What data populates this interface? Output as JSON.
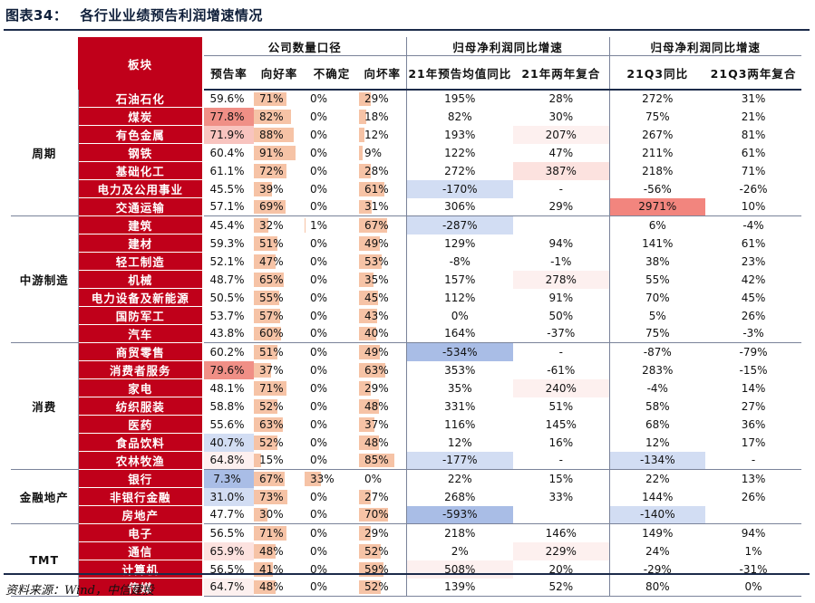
{
  "title": {
    "label": "图表34：",
    "text": "各行业业绩预告利润增速情况"
  },
  "headers": {
    "board": "板块",
    "company_count": "公司数量口径",
    "yoy_group_a": "归母净利润同比增速",
    "yoy_group_b": "归母净利润同比增速",
    "cols": [
      "预告率",
      "向好率",
      "不确定",
      "向坏率",
      "21年预告均值同比",
      "21年两年复合",
      "21Q3同比",
      "21Q3两年复合"
    ]
  },
  "categories": [
    {
      "name": "周期",
      "rows": 7
    },
    {
      "name": "中游制造",
      "rows": 7
    },
    {
      "name": "消费",
      "rows": 7
    },
    {
      "name": "金融地产",
      "rows": 3
    },
    {
      "name": "TMT",
      "rows": 4
    }
  ],
  "rows": [
    {
      "industry": "石油石化",
      "forecast_rate": "59.6%",
      "good": "71%",
      "good_pct": 71,
      "uncertain": "0%",
      "unc_pct": 0,
      "bad": "29%",
      "bad_pct": 29,
      "yoy21": "195%",
      "cagr21": "28%",
      "q3yoy": "272%",
      "q3cagr": "31%",
      "fr_style": "",
      "y_style": "",
      "c_style": "",
      "q_style": "",
      "qc_style": ""
    },
    {
      "industry": "煤炭",
      "forecast_rate": "77.8%",
      "good": "82%",
      "good_pct": 82,
      "uncertain": "0%",
      "unc_pct": 0,
      "bad": "18%",
      "bad_pct": 18,
      "yoy21": "82%",
      "cagr21": "30%",
      "q3yoy": "75%",
      "q3cagr": "21%",
      "fr_style": "r-dark",
      "y_style": "",
      "c_style": "",
      "q_style": "",
      "qc_style": ""
    },
    {
      "industry": "有色金属",
      "forecast_rate": "71.9%",
      "good": "88%",
      "good_pct": 88,
      "uncertain": "0%",
      "unc_pct": 0,
      "bad": "12%",
      "bad_pct": 12,
      "yoy21": "193%",
      "cagr21": "207%",
      "q3yoy": "267%",
      "q3cagr": "81%",
      "fr_style": "r-mid",
      "y_style": "",
      "c_style": "p-pale",
      "q_style": "",
      "qc_style": ""
    },
    {
      "industry": "钢铁",
      "forecast_rate": "60.4%",
      "good": "91%",
      "good_pct": 91,
      "uncertain": "0%",
      "unc_pct": 0,
      "bad": "9%",
      "bad_pct": 9,
      "yoy21": "122%",
      "cagr21": "47%",
      "q3yoy": "211%",
      "q3cagr": "61%",
      "fr_style": "",
      "y_style": "",
      "c_style": "",
      "q_style": "",
      "qc_style": ""
    },
    {
      "industry": "基础化工",
      "forecast_rate": "61.1%",
      "good": "72%",
      "good_pct": 72,
      "uncertain": "0%",
      "unc_pct": 0,
      "bad": "28%",
      "bad_pct": 28,
      "yoy21": "272%",
      "cagr21": "387%",
      "q3yoy": "218%",
      "q3cagr": "71%",
      "fr_style": "",
      "y_style": "",
      "c_style": "r-light",
      "q_style": "",
      "qc_style": ""
    },
    {
      "industry": "电力及公用事业",
      "forecast_rate": "45.5%",
      "good": "39%",
      "good_pct": 39,
      "uncertain": "0%",
      "unc_pct": 0,
      "bad": "61%",
      "bad_pct": 61,
      "yoy21": "-170%",
      "cagr21": "-",
      "q3yoy": "-56%",
      "q3cagr": "-26%",
      "fr_style": "",
      "y_style": "b-light",
      "c_style": "",
      "q_style": "",
      "qc_style": ""
    },
    {
      "industry": "交通运输",
      "forecast_rate": "57.1%",
      "good": "69%",
      "good_pct": 69,
      "uncertain": "0%",
      "unc_pct": 0,
      "bad": "31%",
      "bad_pct": 31,
      "yoy21": "306%",
      "cagr21": "29%",
      "q3yoy": "2971%",
      "q3cagr": "10%",
      "fr_style": "",
      "y_style": "",
      "c_style": "",
      "q_style": "r-strong",
      "qc_style": ""
    },
    {
      "industry": "建筑",
      "forecast_rate": "45.4%",
      "good": "32%",
      "good_pct": 32,
      "uncertain": "1%",
      "unc_pct": 1,
      "bad": "67%",
      "bad_pct": 67,
      "yoy21": "-287%",
      "cagr21": "",
      "q3yoy": "6%",
      "q3cagr": "-4%",
      "fr_style": "",
      "y_style": "b-light",
      "c_style": "",
      "q_style": "",
      "qc_style": ""
    },
    {
      "industry": "建材",
      "forecast_rate": "59.3%",
      "good": "51%",
      "good_pct": 51,
      "uncertain": "0%",
      "unc_pct": 0,
      "bad": "49%",
      "bad_pct": 49,
      "yoy21": "129%",
      "cagr21": "94%",
      "q3yoy": "141%",
      "q3cagr": "61%",
      "fr_style": "",
      "y_style": "",
      "c_style": "",
      "q_style": "",
      "qc_style": ""
    },
    {
      "industry": "轻工制造",
      "forecast_rate": "52.1%",
      "good": "47%",
      "good_pct": 47,
      "uncertain": "0%",
      "unc_pct": 0,
      "bad": "53%",
      "bad_pct": 53,
      "yoy21": "-8%",
      "cagr21": "-1%",
      "q3yoy": "38%",
      "q3cagr": "23%",
      "fr_style": "",
      "y_style": "",
      "c_style": "",
      "q_style": "",
      "qc_style": ""
    },
    {
      "industry": "机械",
      "forecast_rate": "48.7%",
      "good": "65%",
      "good_pct": 65,
      "uncertain": "0%",
      "unc_pct": 0,
      "bad": "35%",
      "bad_pct": 35,
      "yoy21": "157%",
      "cagr21": "278%",
      "q3yoy": "55%",
      "q3cagr": "42%",
      "fr_style": "",
      "y_style": "",
      "c_style": "p-pale",
      "q_style": "",
      "qc_style": ""
    },
    {
      "industry": "电力设备及新能源",
      "forecast_rate": "50.5%",
      "good": "55%",
      "good_pct": 55,
      "uncertain": "0%",
      "unc_pct": 0,
      "bad": "45%",
      "bad_pct": 45,
      "yoy21": "112%",
      "cagr21": "91%",
      "q3yoy": "70%",
      "q3cagr": "45%",
      "fr_style": "",
      "y_style": "",
      "c_style": "",
      "q_style": "",
      "qc_style": ""
    },
    {
      "industry": "国防军工",
      "forecast_rate": "53.7%",
      "good": "57%",
      "good_pct": 57,
      "uncertain": "0%",
      "unc_pct": 0,
      "bad": "43%",
      "bad_pct": 43,
      "yoy21": "0%",
      "cagr21": "50%",
      "q3yoy": "5%",
      "q3cagr": "26%",
      "fr_style": "",
      "y_style": "",
      "c_style": "",
      "q_style": "",
      "qc_style": ""
    },
    {
      "industry": "汽车",
      "forecast_rate": "43.8%",
      "good": "60%",
      "good_pct": 60,
      "uncertain": "0%",
      "unc_pct": 0,
      "bad": "40%",
      "bad_pct": 40,
      "yoy21": "164%",
      "cagr21": "-37%",
      "q3yoy": "75%",
      "q3cagr": "-3%",
      "fr_style": "",
      "y_style": "",
      "c_style": "",
      "q_style": "",
      "qc_style": ""
    },
    {
      "industry": "商贸零售",
      "forecast_rate": "60.2%",
      "good": "51%",
      "good_pct": 51,
      "uncertain": "0%",
      "unc_pct": 0,
      "bad": "49%",
      "bad_pct": 49,
      "yoy21": "-534%",
      "cagr21": "-",
      "q3yoy": "-87%",
      "q3cagr": "-79%",
      "fr_style": "",
      "y_style": "b-mid",
      "c_style": "",
      "q_style": "",
      "qc_style": ""
    },
    {
      "industry": "消费者服务",
      "forecast_rate": "79.6%",
      "good": "37%",
      "good_pct": 37,
      "uncertain": "0%",
      "unc_pct": 0,
      "bad": "63%",
      "bad_pct": 63,
      "yoy21": "353%",
      "cagr21": "-61%",
      "q3yoy": "283%",
      "q3cagr": "-15%",
      "fr_style": "r-dark",
      "y_style": "",
      "c_style": "",
      "q_style": "",
      "qc_style": ""
    },
    {
      "industry": "家电",
      "forecast_rate": "48.1%",
      "good": "71%",
      "good_pct": 71,
      "uncertain": "0%",
      "unc_pct": 0,
      "bad": "29%",
      "bad_pct": 29,
      "yoy21": "35%",
      "cagr21": "240%",
      "q3yoy": "-4%",
      "q3cagr": "14%",
      "fr_style": "",
      "y_style": "",
      "c_style": "p-pale",
      "q_style": "",
      "qc_style": ""
    },
    {
      "industry": "纺织服装",
      "forecast_rate": "58.8%",
      "good": "52%",
      "good_pct": 52,
      "uncertain": "0%",
      "unc_pct": 0,
      "bad": "48%",
      "bad_pct": 48,
      "yoy21": "331%",
      "cagr21": "51%",
      "q3yoy": "58%",
      "q3cagr": "27%",
      "fr_style": "",
      "y_style": "",
      "c_style": "",
      "q_style": "",
      "qc_style": ""
    },
    {
      "industry": "医药",
      "forecast_rate": "55.6%",
      "good": "63%",
      "good_pct": 63,
      "uncertain": "0%",
      "unc_pct": 0,
      "bad": "37%",
      "bad_pct": 37,
      "yoy21": "116%",
      "cagr21": "145%",
      "q3yoy": "68%",
      "q3cagr": "36%",
      "fr_style": "",
      "y_style": "",
      "c_style": "",
      "q_style": "",
      "qc_style": ""
    },
    {
      "industry": "食品饮料",
      "forecast_rate": "40.7%",
      "good": "52%",
      "good_pct": 52,
      "uncertain": "0%",
      "unc_pct": 0,
      "bad": "48%",
      "bad_pct": 48,
      "yoy21": "12%",
      "cagr21": "16%",
      "q3yoy": "12%",
      "q3cagr": "17%",
      "fr_style": "b-light",
      "y_style": "",
      "c_style": "",
      "q_style": "",
      "qc_style": ""
    },
    {
      "industry": "农林牧渔",
      "forecast_rate": "64.8%",
      "good": "15%",
      "good_pct": 15,
      "uncertain": "0%",
      "unc_pct": 0,
      "bad": "85%",
      "bad_pct": 85,
      "yoy21": "-177%",
      "cagr21": "-",
      "q3yoy": "-134%",
      "q3cagr": "-",
      "fr_style": "p-pale",
      "y_style": "b-light",
      "c_style": "",
      "q_style": "b-light",
      "qc_style": ""
    },
    {
      "industry": "银行",
      "forecast_rate": "7.3%",
      "good": "67%",
      "good_pct": 67,
      "uncertain": "33%",
      "unc_pct": 33,
      "bad": "0%",
      "bad_pct": 0,
      "yoy21": "22%",
      "cagr21": "15%",
      "q3yoy": "22%",
      "q3cagr": "13%",
      "fr_style": "b-mid",
      "y_style": "",
      "c_style": "",
      "q_style": "",
      "qc_style": ""
    },
    {
      "industry": "非银行金融",
      "forecast_rate": "31.0%",
      "good": "73%",
      "good_pct": 73,
      "uncertain": "0%",
      "unc_pct": 0,
      "bad": "27%",
      "bad_pct": 27,
      "yoy21": "268%",
      "cagr21": "33%",
      "q3yoy": "144%",
      "q3cagr": "26%",
      "fr_style": "b-light",
      "y_style": "",
      "c_style": "",
      "q_style": "",
      "qc_style": ""
    },
    {
      "industry": "房地产",
      "forecast_rate": "47.7%",
      "good": "30%",
      "good_pct": 30,
      "uncertain": "0%",
      "unc_pct": 0,
      "bad": "70%",
      "bad_pct": 70,
      "yoy21": "-593%",
      "cagr21": "",
      "q3yoy": "-140%",
      "q3cagr": "",
      "fr_style": "",
      "y_style": "b-mid",
      "c_style": "",
      "q_style": "b-light",
      "qc_style": ""
    },
    {
      "industry": "电子",
      "forecast_rate": "56.5%",
      "good": "71%",
      "good_pct": 71,
      "uncertain": "0%",
      "unc_pct": 0,
      "bad": "29%",
      "bad_pct": 29,
      "yoy21": "218%",
      "cagr21": "146%",
      "q3yoy": "149%",
      "q3cagr": "94%",
      "fr_style": "",
      "y_style": "",
      "c_style": "",
      "q_style": "",
      "qc_style": ""
    },
    {
      "industry": "通信",
      "forecast_rate": "65.9%",
      "good": "48%",
      "good_pct": 48,
      "uncertain": "0%",
      "unc_pct": 0,
      "bad": "52%",
      "bad_pct": 52,
      "yoy21": "2%",
      "cagr21": "229%",
      "q3yoy": "24%",
      "q3cagr": "1%",
      "fr_style": "r-light",
      "y_style": "",
      "c_style": "p-pale",
      "q_style": "",
      "qc_style": ""
    },
    {
      "industry": "计算机",
      "forecast_rate": "56.5%",
      "good": "41%",
      "good_pct": 41,
      "uncertain": "0%",
      "unc_pct": 0,
      "bad": "59%",
      "bad_pct": 59,
      "yoy21": "508%",
      "cagr21": "20%",
      "q3yoy": "-29%",
      "q3cagr": "-31%",
      "fr_style": "",
      "y_style": "p-pale",
      "c_style": "",
      "q_style": "",
      "qc_style": ""
    },
    {
      "industry": "传媒",
      "forecast_rate": "64.7%",
      "good": "48%",
      "good_pct": 48,
      "uncertain": "0%",
      "unc_pct": 0,
      "bad": "52%",
      "bad_pct": 52,
      "yoy21": "139%",
      "cagr21": "52%",
      "q3yoy": "80%",
      "q3cagr": "0%",
      "fr_style": "p-pale",
      "y_style": "",
      "c_style": "",
      "q_style": "",
      "qc_style": ""
    }
  ],
  "source": "资料来源：Wind，中信建投"
}
